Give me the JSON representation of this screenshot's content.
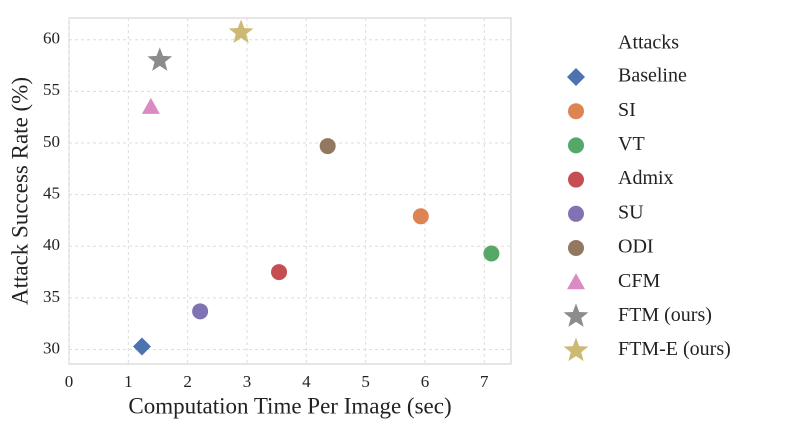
{
  "chart_data": {
    "type": "scatter",
    "xlabel": "Computation Time Per Image (sec)",
    "ylabel": "Attack  Success  Rate (%)",
    "legend_title": "Attacks",
    "xlim": [
      0,
      7.45
    ],
    "ylim": [
      28.6,
      62.1
    ],
    "xticks": [
      0,
      1,
      2,
      3,
      4,
      5,
      6,
      7
    ],
    "yticks": [
      30,
      35,
      40,
      45,
      50,
      55,
      60
    ],
    "grid": true,
    "series": [
      {
        "name": "Baseline",
        "color": "#4c72b0",
        "marker": "diamond",
        "x": [
          1.23
        ],
        "values": [
          30.3
        ]
      },
      {
        "name": "SI",
        "color": "#dd8452",
        "marker": "circle",
        "x": [
          5.93
        ],
        "values": [
          42.9
        ]
      },
      {
        "name": "VT",
        "color": "#55a868",
        "marker": "circle",
        "x": [
          7.12
        ],
        "values": [
          39.3
        ]
      },
      {
        "name": "Admix",
        "color": "#c44e52",
        "marker": "circle",
        "x": [
          3.54
        ],
        "values": [
          37.5
        ]
      },
      {
        "name": "SU",
        "color": "#8172b3",
        "marker": "circle",
        "x": [
          2.21
        ],
        "values": [
          33.7
        ]
      },
      {
        "name": "ODI",
        "color": "#937860",
        "marker": "circle",
        "x": [
          4.36
        ],
        "values": [
          49.7
        ]
      },
      {
        "name": "CFM",
        "color": "#da8bc3",
        "marker": "triangle",
        "x": [
          1.38
        ],
        "values": [
          53.5
        ]
      },
      {
        "name": "FTM (ours)",
        "color": "#8c8c8c",
        "marker": "star",
        "x": [
          1.53
        ],
        "values": [
          58.0
        ]
      },
      {
        "name": "FTM-E (ours)",
        "color": "#ccb974",
        "marker": "star",
        "x": [
          2.9
        ],
        "values": [
          60.7
        ]
      }
    ]
  }
}
